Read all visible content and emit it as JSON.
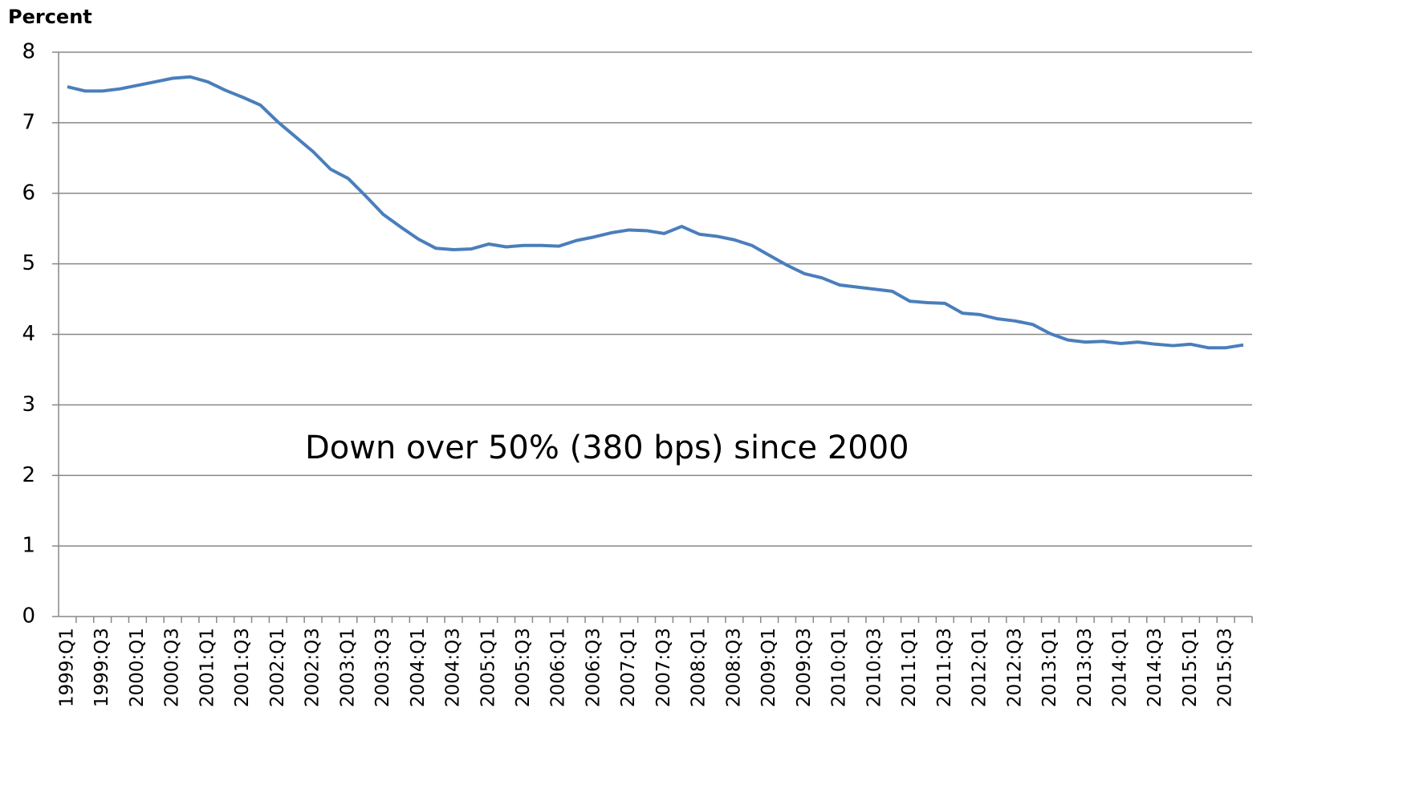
{
  "chart_data": {
    "type": "line",
    "title": "Percent",
    "annotation": "Down over 50% (380 bps) since 2000",
    "categories": [
      "1999:Q1",
      null,
      "1999:Q3",
      null,
      "2000:Q1",
      null,
      "2000:Q3",
      null,
      "2001:Q1",
      null,
      "2001:Q3",
      null,
      "2002:Q1",
      null,
      "2002:Q3",
      null,
      "2003:Q1",
      null,
      "2003:Q3",
      null,
      "2004:Q1",
      null,
      "2004:Q3",
      null,
      "2005:Q1",
      null,
      "2005:Q3",
      null,
      "2006:Q1",
      null,
      "2006:Q3",
      null,
      "2007:Q1",
      null,
      "2007:Q3",
      null,
      "2008:Q1",
      null,
      "2008:Q3",
      null,
      "2009:Q1",
      null,
      "2009:Q3",
      null,
      "2010:Q1",
      null,
      "2010:Q3",
      null,
      "2011:Q1",
      null,
      "2011:Q3",
      null,
      "2012:Q1",
      null,
      "2012:Q3",
      null,
      "2013:Q1",
      null,
      "2013:Q3",
      null,
      "2014:Q1",
      null,
      "2014:Q3",
      null,
      "2015:Q1",
      null,
      "2015:Q3",
      null
    ],
    "values": [
      7.51,
      7.45,
      7.45,
      7.48,
      7.53,
      7.58,
      7.63,
      7.65,
      7.58,
      7.46,
      7.36,
      7.25,
      7.01,
      6.8,
      6.59,
      6.34,
      6.21,
      5.96,
      5.7,
      5.52,
      5.35,
      5.22,
      5.2,
      5.21,
      5.28,
      5.24,
      5.26,
      5.26,
      5.25,
      5.33,
      5.38,
      5.44,
      5.48,
      5.47,
      5.43,
      5.53,
      5.42,
      5.39,
      5.34,
      5.26,
      5.12,
      4.98,
      4.86,
      4.8,
      4.7,
      4.67,
      4.64,
      4.61,
      4.47,
      4.45,
      4.44,
      4.3,
      4.28,
      4.22,
      4.19,
      4.14,
      4.01,
      3.92,
      3.89,
      3.9,
      3.87,
      3.89,
      3.86,
      3.84,
      3.86,
      3.81,
      3.81,
      3.85
    ],
    "color": "#4a7ebb",
    "ylim": [
      0,
      8
    ],
    "yticks": [
      0,
      1,
      2,
      3,
      4,
      5,
      6,
      7,
      8
    ],
    "grid": true
  }
}
